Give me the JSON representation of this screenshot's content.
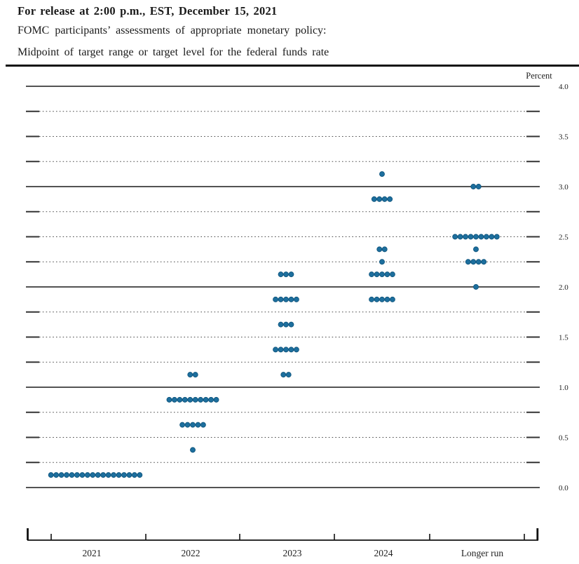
{
  "header": {
    "release_line": "For release at 2:00 p.m., EST, December 15, 2021",
    "subtitle1": "FOMC participants’ assessments of appropriate monetary policy:",
    "subtitle2": "Midpoint of target range or target level for the federal funds rate"
  },
  "chart_data": {
    "type": "scatter",
    "title": "FOMC dot plot: midpoint of target range or target level for the federal funds rate",
    "unit_label": "Percent",
    "ylim": [
      0.0,
      4.0
    ],
    "grid_step": 0.25,
    "label_step": 0.5,
    "y_tick_labels": [
      "0.0",
      "0.5",
      "1.0",
      "1.5",
      "2.0",
      "2.5",
      "3.0",
      "3.5",
      "4.0"
    ],
    "grid": "dotted-quarters-solid-integers",
    "legend_position": "none",
    "categories": [
      "2021",
      "2022",
      "2023",
      "2024",
      "Longer run"
    ],
    "columns": [
      {
        "label": "2021",
        "dots": [
          {
            "rate": 0.125,
            "count": 18
          }
        ]
      },
      {
        "label": "2022",
        "dots": [
          {
            "rate": 1.125,
            "count": 2
          },
          {
            "rate": 0.875,
            "count": 10
          },
          {
            "rate": 0.625,
            "count": 5
          },
          {
            "rate": 0.375,
            "count": 1
          }
        ]
      },
      {
        "label": "2023",
        "dots": [
          {
            "rate": 2.125,
            "count": 3
          },
          {
            "rate": 1.875,
            "count": 5
          },
          {
            "rate": 1.625,
            "count": 3
          },
          {
            "rate": 1.375,
            "count": 5
          },
          {
            "rate": 1.125,
            "count": 2
          }
        ]
      },
      {
        "label": "2024",
        "dots": [
          {
            "rate": 3.125,
            "count": 1
          },
          {
            "rate": 2.875,
            "count": 4
          },
          {
            "rate": 2.375,
            "count": 2
          },
          {
            "rate": 2.25,
            "count": 1
          },
          {
            "rate": 2.125,
            "count": 5
          },
          {
            "rate": 1.875,
            "count": 5
          }
        ]
      },
      {
        "label": "Longer run",
        "dots": [
          {
            "rate": 3.0,
            "count": 2
          },
          {
            "rate": 2.5,
            "count": 9
          },
          {
            "rate": 2.375,
            "count": 1
          },
          {
            "rate": 2.25,
            "count": 4
          },
          {
            "rate": 2.0,
            "count": 1
          }
        ]
      }
    ],
    "colors": {
      "dot": "#1d6f9e",
      "dot_edge": "#10567e",
      "line": "#1a1a1a",
      "dotted_line": "#4a4a4a",
      "text": "#222222"
    }
  }
}
